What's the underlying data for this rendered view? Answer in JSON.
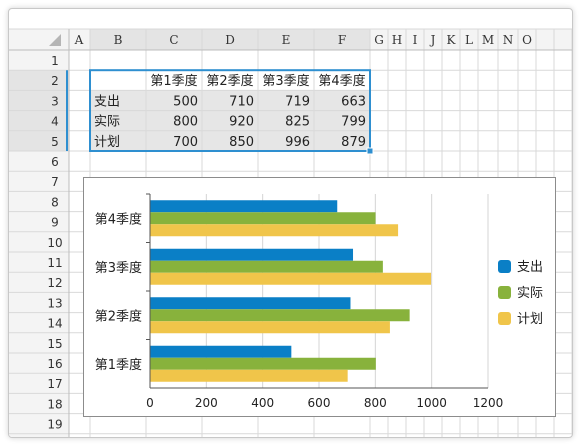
{
  "sheet": {
    "column_headers": [
      "A",
      "B",
      "C",
      "D",
      "E",
      "F",
      "G",
      "H",
      "I",
      "J",
      "K",
      "L",
      "M",
      "N",
      "O"
    ],
    "row_headers": [
      "1",
      "2",
      "3",
      "4",
      "5",
      "6",
      "7",
      "8",
      "9",
      "10",
      "11",
      "12",
      "13",
      "14",
      "15",
      "16",
      "17",
      "18",
      "19"
    ],
    "table_header": [
      "第1季度",
      "第2季度",
      "第3季度",
      "第4季度"
    ],
    "table_rows": [
      {
        "label": "支出",
        "values": [
          "500",
          "710",
          "719",
          "663"
        ]
      },
      {
        "label": "实际",
        "values": [
          "800",
          "920",
          "825",
          "799"
        ]
      },
      {
        "label": "计划",
        "values": [
          "700",
          "850",
          "996",
          "879"
        ]
      }
    ],
    "colors": {
      "selection": "#2e8fd0",
      "header_bg": "#f4f4f4",
      "data_bg": "#e6e6e6",
      "grid": "#d9d9d9"
    }
  },
  "chart_data": {
    "type": "bar",
    "orientation": "horizontal",
    "categories": [
      "第1季度",
      "第2季度",
      "第3季度",
      "第4季度"
    ],
    "series": [
      {
        "name": "支出",
        "values": [
          500,
          710,
          719,
          663
        ],
        "color": "#0a7fc6"
      },
      {
        "name": "实际",
        "values": [
          800,
          920,
          825,
          799
        ],
        "color": "#88b23c"
      },
      {
        "name": "计划",
        "values": [
          700,
          850,
          996,
          879
        ],
        "color": "#f0c54a"
      }
    ],
    "xlim": [
      0,
      1200
    ],
    "xticks": [
      "0",
      "200",
      "400",
      "600",
      "800",
      "1000",
      "1200"
    ],
    "grid": true,
    "legend_position": "right"
  }
}
